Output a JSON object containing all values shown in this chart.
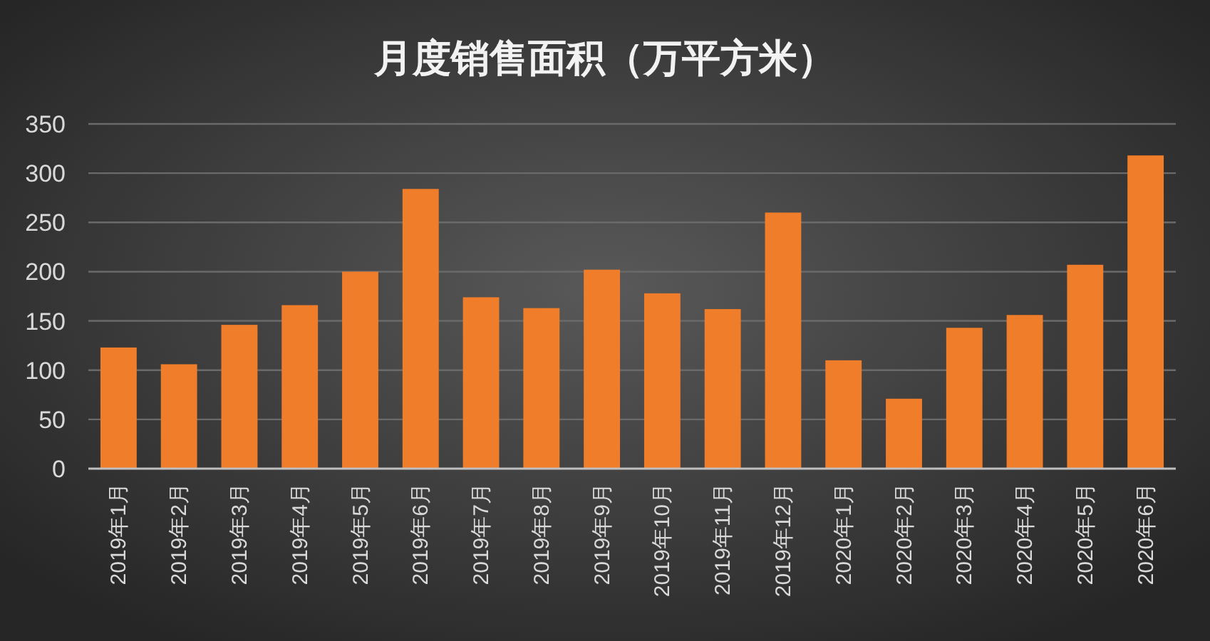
{
  "chart_data": {
    "type": "bar",
    "title": "月度销售面积（万平方米）",
    "categories": [
      "2019年1月",
      "2019年2月",
      "2019年3月",
      "2019年4月",
      "2019年5月",
      "2019年6月",
      "2019年7月",
      "2019年8月",
      "2019年9月",
      "2019年10月",
      "2019年11月",
      "2019年12月",
      "2020年1月",
      "2020年2月",
      "2020年3月",
      "2020年4月",
      "2020年5月",
      "2020年6月"
    ],
    "values": [
      123,
      106,
      146,
      166,
      200,
      284,
      174,
      163,
      202,
      178,
      162,
      260,
      110,
      71,
      143,
      156,
      207,
      318
    ],
    "color": "#f07d2a",
    "ylim": [
      0,
      350
    ],
    "yticks": [
      0,
      50,
      100,
      150,
      200,
      250,
      300,
      350
    ],
    "grid": "y"
  }
}
